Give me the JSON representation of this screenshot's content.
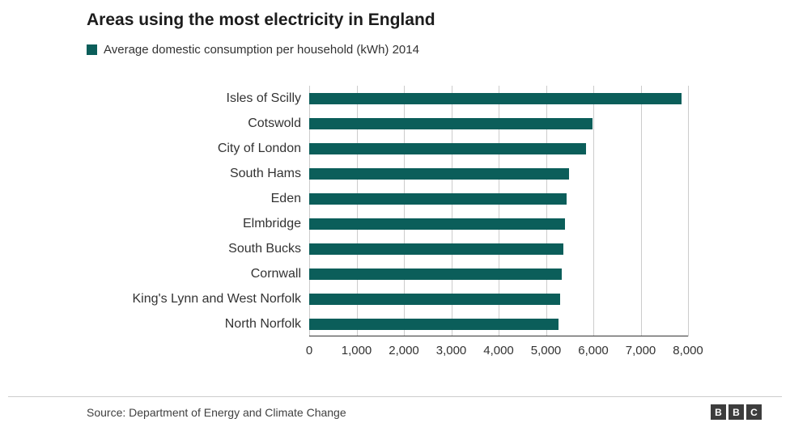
{
  "title": "Areas using the most electricity in England",
  "legend": {
    "label": "Average domestic consumption per household (kWh) 2014",
    "color": "#0b5e5a"
  },
  "chart_data": {
    "type": "bar",
    "orientation": "horizontal",
    "title": "Areas using the most electricity in England",
    "legend_label": "Average domestic consumption per household (kWh) 2014",
    "categories": [
      "Isles of Scilly",
      "Cotswold",
      "City of London",
      "South Hams",
      "Eden",
      "Elmbridge",
      "South Bucks",
      "Cornwall",
      "King's Lynn and West Norfolk",
      "North Norfolk"
    ],
    "values": [
      7870,
      5980,
      5850,
      5480,
      5430,
      5400,
      5370,
      5340,
      5300,
      5260
    ],
    "unit": "kWh",
    "xlabel": "",
    "ylabel": "",
    "xlim": [
      0,
      8000
    ],
    "xticks": [
      0,
      1000,
      2000,
      3000,
      4000,
      5000,
      6000,
      7000,
      8000
    ],
    "xtick_labels": [
      "0",
      "1,000",
      "2,000",
      "3,000",
      "4,000",
      "5,000",
      "6,000",
      "7,000",
      "8,000"
    ],
    "bar_color": "#0b5e5a",
    "grid": true,
    "gridline_color": "#cccccc",
    "legend_position": "top-left"
  },
  "footer": {
    "source": "Source: Department of Energy and Climate Change",
    "logo": [
      "B",
      "B",
      "C"
    ]
  }
}
